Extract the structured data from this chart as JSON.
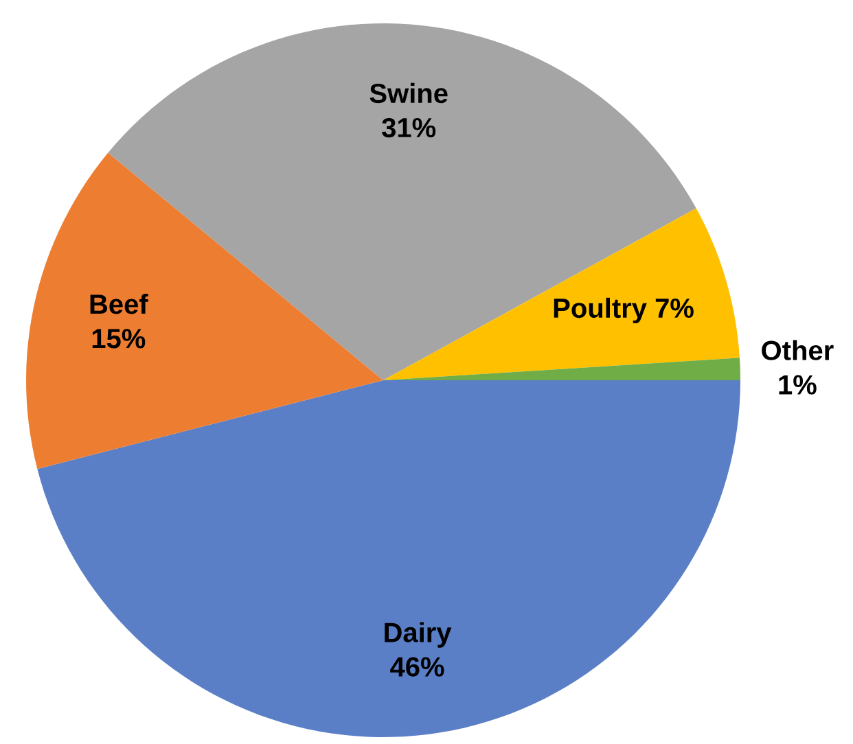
{
  "chart_data": {
    "type": "pie",
    "categories": [
      "Dairy",
      "Beef",
      "Swine",
      "Poultry",
      "Other"
    ],
    "values": [
      46,
      15,
      31,
      7,
      1
    ],
    "value_labels": [
      "46%",
      "15%",
      "31%",
      "7%",
      "1%"
    ],
    "colors": [
      "#5a7fc6",
      "#ed7d31",
      "#a5a5a5",
      "#ffc000",
      "#70ad47"
    ]
  }
}
